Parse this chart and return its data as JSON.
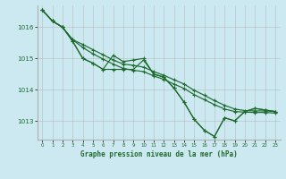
{
  "title": "Graphe pression niveau de la mer (hPa)",
  "background_color": "#cce8f0",
  "grid_color": "#b0b0b0",
  "line_color": "#1e6b2e",
  "x_ticks": [
    0,
    1,
    2,
    3,
    4,
    5,
    6,
    7,
    8,
    9,
    10,
    11,
    12,
    13,
    14,
    15,
    16,
    17,
    18,
    19,
    20,
    21,
    22,
    23
  ],
  "ylim": [
    1012.4,
    1016.7
  ],
  "yticks": [
    1013,
    1014,
    1015,
    1016
  ],
  "figsize": [
    3.2,
    2.0
  ],
  "dpi": 100,
  "line1": [
    1016.55,
    1016.2,
    1016.0,
    1015.55,
    1015.0,
    1014.85,
    1014.65,
    1015.1,
    1014.9,
    1014.95,
    1015.0,
    1014.5,
    1014.4,
    1014.05,
    1013.6,
    1013.05,
    1012.7,
    1012.5,
    1013.1,
    1013.0,
    1013.3,
    1013.4,
    1013.35,
    1013.3
  ],
  "line2": [
    1016.55,
    1016.2,
    1016.0,
    1015.55,
    1015.0,
    1014.85,
    1014.65,
    1014.65,
    1014.65,
    1014.65,
    1014.95,
    1014.5,
    1014.4,
    1014.05,
    1013.6,
    1013.05,
    1012.7,
    1012.5,
    1013.1,
    1013.0,
    1013.3,
    1013.4,
    1013.35,
    1013.3
  ],
  "line3": [
    1016.55,
    1016.2,
    1016.0,
    1015.6,
    1015.45,
    1015.28,
    1015.12,
    1014.95,
    1014.82,
    1014.78,
    1014.72,
    1014.58,
    1014.46,
    1014.32,
    1014.18,
    1013.98,
    1013.82,
    1013.65,
    1013.5,
    1013.38,
    1013.33,
    1013.32,
    1013.32,
    1013.3
  ],
  "line4": [
    1016.55,
    1016.2,
    1016.0,
    1015.6,
    1015.35,
    1015.15,
    1014.98,
    1014.82,
    1014.68,
    1014.62,
    1014.58,
    1014.44,
    1014.33,
    1014.18,
    1014.04,
    1013.84,
    1013.68,
    1013.52,
    1013.38,
    1013.3,
    1013.28,
    1013.27,
    1013.27,
    1013.25
  ]
}
